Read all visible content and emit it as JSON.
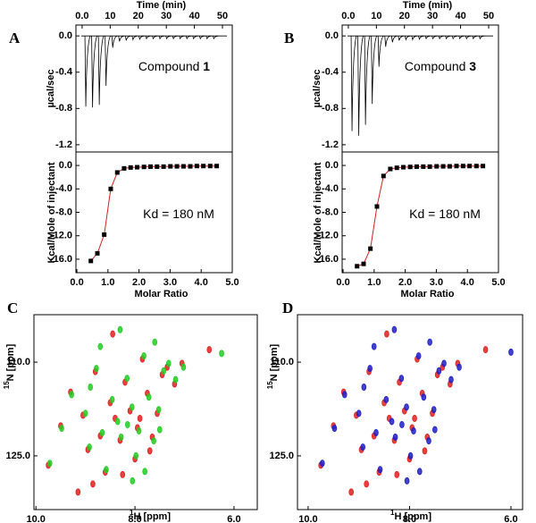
{
  "chart_data": [
    {
      "type": "spike",
      "panel": "A",
      "xlabel": "Time (min)",
      "ylabel": "µcal/sec",
      "annotation": {
        "text": "Compound",
        "bold": "1"
      },
      "color": "#000000",
      "x": [
        1.0,
        3.4,
        5.8,
        8.2,
        10.6,
        13.0,
        15.4,
        17.8,
        20.2,
        22.6,
        25.0,
        27.4,
        29.8,
        32.2,
        34.6,
        37.0,
        39.4,
        41.8,
        44.2,
        46.6
      ],
      "values": [
        -0.78,
        -0.79,
        -0.76,
        -0.55,
        -0.13,
        -0.06,
        -0.05,
        -0.04,
        -0.035,
        -0.03,
        -0.03,
        -0.03,
        -0.03,
        -0.03,
        -0.03,
        -0.03,
        -0.03,
        -0.03,
        -0.03,
        -0.03
      ],
      "xlim": [
        -2.2,
        53.5
      ],
      "xticks": [
        {
          "value": 0,
          "label": "0.0"
        },
        10,
        20,
        30,
        40,
        50
      ],
      "ylim": [
        -1.28,
        0.12
      ],
      "yticks": [
        {
          "value": 0,
          "label": "0.0"
        },
        -0.4,
        -0.8,
        -1.2
      ]
    },
    {
      "type": "isotherm",
      "xlabel": "Molar Ratio",
      "ylabel": "Kcal/Mole of injectant",
      "annotation": {
        "text": "Kd = 180 nM"
      },
      "marker_color": "#000000",
      "line_color": "#d42020",
      "x": [
        0.45,
        0.66,
        0.88,
        1.09,
        1.3,
        1.52,
        1.73,
        1.94,
        2.16,
        2.37,
        2.58,
        2.79,
        3.01,
        3.22,
        3.43,
        3.65,
        3.86,
        4.07,
        4.29,
        4.5
      ],
      "values": [
        -16.3,
        -15.0,
        -11.8,
        -4.0,
        -1.2,
        -0.5,
        -0.35,
        -0.3,
        -0.25,
        -0.2,
        -0.2,
        -0.2,
        -0.15,
        -0.15,
        -0.15,
        -0.15,
        -0.1,
        -0.1,
        -0.1,
        -0.1
      ],
      "xlim": [
        -0.03,
        5.0
      ],
      "xticks": [
        {
          "value": 0,
          "label": "0.0"
        },
        {
          "value": 1,
          "label": "1.0"
        },
        {
          "value": 2,
          "label": "2.0"
        },
        {
          "value": 3,
          "label": "3.0"
        },
        {
          "value": 4,
          "label": "4.0"
        },
        {
          "value": 5,
          "label": "5.0"
        }
      ],
      "ylim": [
        -18.3,
        2.3
      ],
      "yticks": [
        {
          "value": 0,
          "label": "0.0"
        },
        {
          "value": -4,
          "label": "-4.0"
        },
        {
          "value": -8,
          "label": "-8.0"
        },
        {
          "value": -12,
          "label": "-12.0"
        },
        {
          "value": -16,
          "label": "-16.0"
        }
      ]
    },
    {
      "type": "spike",
      "panel": "B",
      "xlabel": "Time (min)",
      "ylabel": "µcal/sec",
      "annotation": {
        "text": "Compound",
        "bold": "3"
      },
      "color": "#000000",
      "x": [
        1.0,
        3.4,
        5.8,
        8.2,
        10.6,
        13.0,
        15.4,
        17.8,
        20.2,
        22.6,
        25.0,
        27.4,
        29.8,
        32.2,
        34.6,
        37.0,
        39.4,
        41.8,
        44.2,
        46.6
      ],
      "values": [
        -1.05,
        -1.1,
        -0.98,
        -0.75,
        -0.34,
        -0.12,
        -0.07,
        -0.05,
        -0.04,
        -0.04,
        -0.035,
        -0.03,
        -0.03,
        -0.03,
        -0.03,
        -0.03,
        -0.03,
        -0.03,
        -0.03,
        -0.03
      ],
      "xlim": [
        -2.2,
        53.5
      ],
      "xticks": [
        {
          "value": 0,
          "label": "0.0"
        },
        10,
        20,
        30,
        40,
        50
      ],
      "ylim": [
        -1.28,
        0.12
      ],
      "yticks": [
        {
          "value": 0,
          "label": "0.0"
        },
        -0.4,
        -0.8,
        -1.2
      ]
    },
    {
      "type": "isotherm",
      "xlabel": "Molar Ratio",
      "ylabel": "Kcal/Mole of injectant",
      "annotation": {
        "text": "Kd = 180 nM"
      },
      "marker_color": "#000000",
      "line_color": "#d42020",
      "x": [
        0.45,
        0.66,
        0.88,
        1.09,
        1.3,
        1.52,
        1.73,
        1.94,
        2.16,
        2.37,
        2.58,
        2.79,
        3.01,
        3.22,
        3.43,
        3.65,
        3.86,
        4.07,
        4.29,
        4.5
      ],
      "values": [
        -17.2,
        -16.8,
        -14.2,
        -7.0,
        -1.8,
        -0.6,
        -0.4,
        -0.3,
        -0.25,
        -0.2,
        -0.2,
        -0.2,
        -0.15,
        -0.15,
        -0.15,
        -0.1,
        -0.1,
        -0.1,
        -0.1,
        -0.1
      ],
      "xlim": [
        -0.03,
        5.0
      ],
      "xticks": [
        {
          "value": 0,
          "label": "0.0"
        },
        {
          "value": 1,
          "label": "1.0"
        },
        {
          "value": 2,
          "label": "2.0"
        },
        {
          "value": 3,
          "label": "3.0"
        },
        {
          "value": 4,
          "label": "4.0"
        },
        {
          "value": 5,
          "label": "5.0"
        }
      ],
      "ylim": [
        -18.3,
        2.3
      ],
      "yticks": [
        {
          "value": 0,
          "label": "0.0"
        },
        {
          "value": -4,
          "label": "-4.0"
        },
        {
          "value": -8,
          "label": "-8.0"
        },
        {
          "value": -12,
          "label": "-12.0"
        },
        {
          "value": -16,
          "label": "-16.0"
        }
      ]
    },
    {
      "type": "scatter",
      "panel": "C",
      "xlabel": {
        "sup": "1",
        "text": "H [ppm]"
      },
      "ylabel": {
        "sup": "15",
        "text": "N [ppm]"
      },
      "series": [
        {
          "color": "#e02020",
          "x": [
            9.75,
            9.5,
            9.3,
            9.05,
            8.95,
            8.8,
            8.7,
            8.6,
            8.5,
            8.4,
            8.3,
            8.2,
            8.1,
            8.0,
            7.95,
            7.85,
            7.75,
            7.65,
            7.55,
            7.45,
            7.35,
            7.2,
            7.05,
            6.5,
            9.15,
            8.85,
            8.45,
            8.25,
            7.9,
            7.7
          ],
          "values": [
            126.5,
            120.2,
            114.8,
            118.5,
            124.0,
            111.5,
            121.8,
            127.6,
            116.5,
            119.0,
            122.5,
            113.2,
            117.8,
            125.5,
            120.5,
            109.5,
            115.0,
            122.0,
            118.2,
            112.0,
            110.8,
            113.5,
            110.2,
            108.0,
            130.8,
            129.5,
            105.5,
            128.0,
            119.0,
            124.2
          ]
        },
        {
          "color": "#22cc22",
          "x": [
            9.72,
            9.48,
            9.28,
            9.0,
            8.92,
            8.78,
            8.66,
            8.58,
            8.46,
            8.35,
            8.28,
            8.16,
            8.06,
            7.98,
            7.92,
            7.82,
            7.72,
            7.62,
            7.52,
            7.42,
            7.32,
            7.18,
            7.02,
            6.25,
            8.3,
            7.6,
            8.7,
            8.05,
            7.8,
            8.9,
            8.15,
            7.5
          ],
          "values": [
            126.2,
            120.6,
            115.2,
            118.2,
            123.6,
            111.0,
            121.3,
            127.2,
            116.0,
            119.5,
            122.0,
            112.6,
            117.2,
            125.0,
            121.0,
            109.0,
            115.6,
            122.6,
            117.6,
            111.4,
            110.2,
            112.8,
            110.8,
            108.6,
            104.8,
            106.8,
            107.5,
            129.0,
            127.5,
            114.0,
            120.0,
            120.8
          ]
        }
      ],
      "xlim": [
        10.04,
        5.53
      ],
      "xticks": [
        {
          "value": 10,
          "label": "10.0"
        },
        {
          "value": 8,
          "label": "8.0"
        },
        {
          "value": 6,
          "label": "6.0"
        }
      ],
      "ylim": [
        133.6,
        102.4
      ],
      "yticks": [
        {
          "value": 110,
          "label": "110.0"
        },
        {
          "value": 125,
          "label": "125.0"
        }
      ]
    },
    {
      "type": "scatter",
      "panel": "D",
      "xlabel": {
        "sup": "1",
        "text": "H [ppm]"
      },
      "ylabel": {
        "sup": "15",
        "text": "N [ppm]"
      },
      "series": [
        {
          "color": "#e02020",
          "x": [
            9.75,
            9.5,
            9.3,
            9.05,
            8.95,
            8.8,
            8.7,
            8.6,
            8.5,
            8.4,
            8.3,
            8.2,
            8.1,
            8.0,
            7.95,
            7.85,
            7.75,
            7.65,
            7.55,
            7.45,
            7.35,
            7.2,
            7.05,
            6.5,
            9.15,
            8.85,
            8.45,
            8.25,
            7.9,
            7.7
          ],
          "values": [
            126.5,
            120.2,
            114.8,
            118.5,
            124.0,
            111.5,
            121.8,
            127.6,
            116.5,
            119.0,
            122.5,
            113.2,
            117.8,
            125.5,
            120.5,
            109.5,
            115.0,
            122.0,
            118.2,
            112.0,
            110.8,
            113.5,
            110.2,
            108.0,
            130.8,
            129.5,
            105.5,
            128.0,
            119.0,
            124.2
          ]
        },
        {
          "color": "#2020c8",
          "x": [
            9.72,
            9.48,
            9.28,
            9.0,
            8.92,
            8.78,
            8.66,
            8.58,
            8.46,
            8.35,
            8.28,
            8.16,
            8.06,
            7.98,
            7.92,
            7.82,
            7.72,
            7.62,
            7.52,
            7.42,
            7.32,
            7.18,
            7.02,
            6.0,
            8.3,
            7.6,
            8.7,
            8.05,
            7.8,
            8.9,
            8.15,
            7.5
          ],
          "values": [
            126.2,
            120.6,
            115.2,
            118.2,
            123.6,
            111.0,
            121.3,
            127.2,
            116.0,
            119.5,
            122.0,
            112.6,
            117.2,
            125.0,
            121.0,
            109.0,
            115.6,
            122.6,
            117.6,
            111.4,
            110.2,
            112.8,
            110.8,
            108.4,
            104.8,
            106.8,
            107.5,
            129.0,
            127.5,
            114.0,
            120.0,
            120.8
          ]
        }
      ],
      "xlim": [
        10.21,
        5.77
      ],
      "xticks": [
        {
          "value": 10,
          "label": "10.0"
        },
        {
          "value": 8,
          "label": "8.0"
        },
        {
          "value": 6,
          "label": "6.0"
        }
      ],
      "ylim": [
        133.6,
        102.4
      ],
      "yticks": [
        {
          "value": 110,
          "label": "110.0"
        },
        {
          "value": 125,
          "label": "125.0"
        }
      ]
    }
  ]
}
